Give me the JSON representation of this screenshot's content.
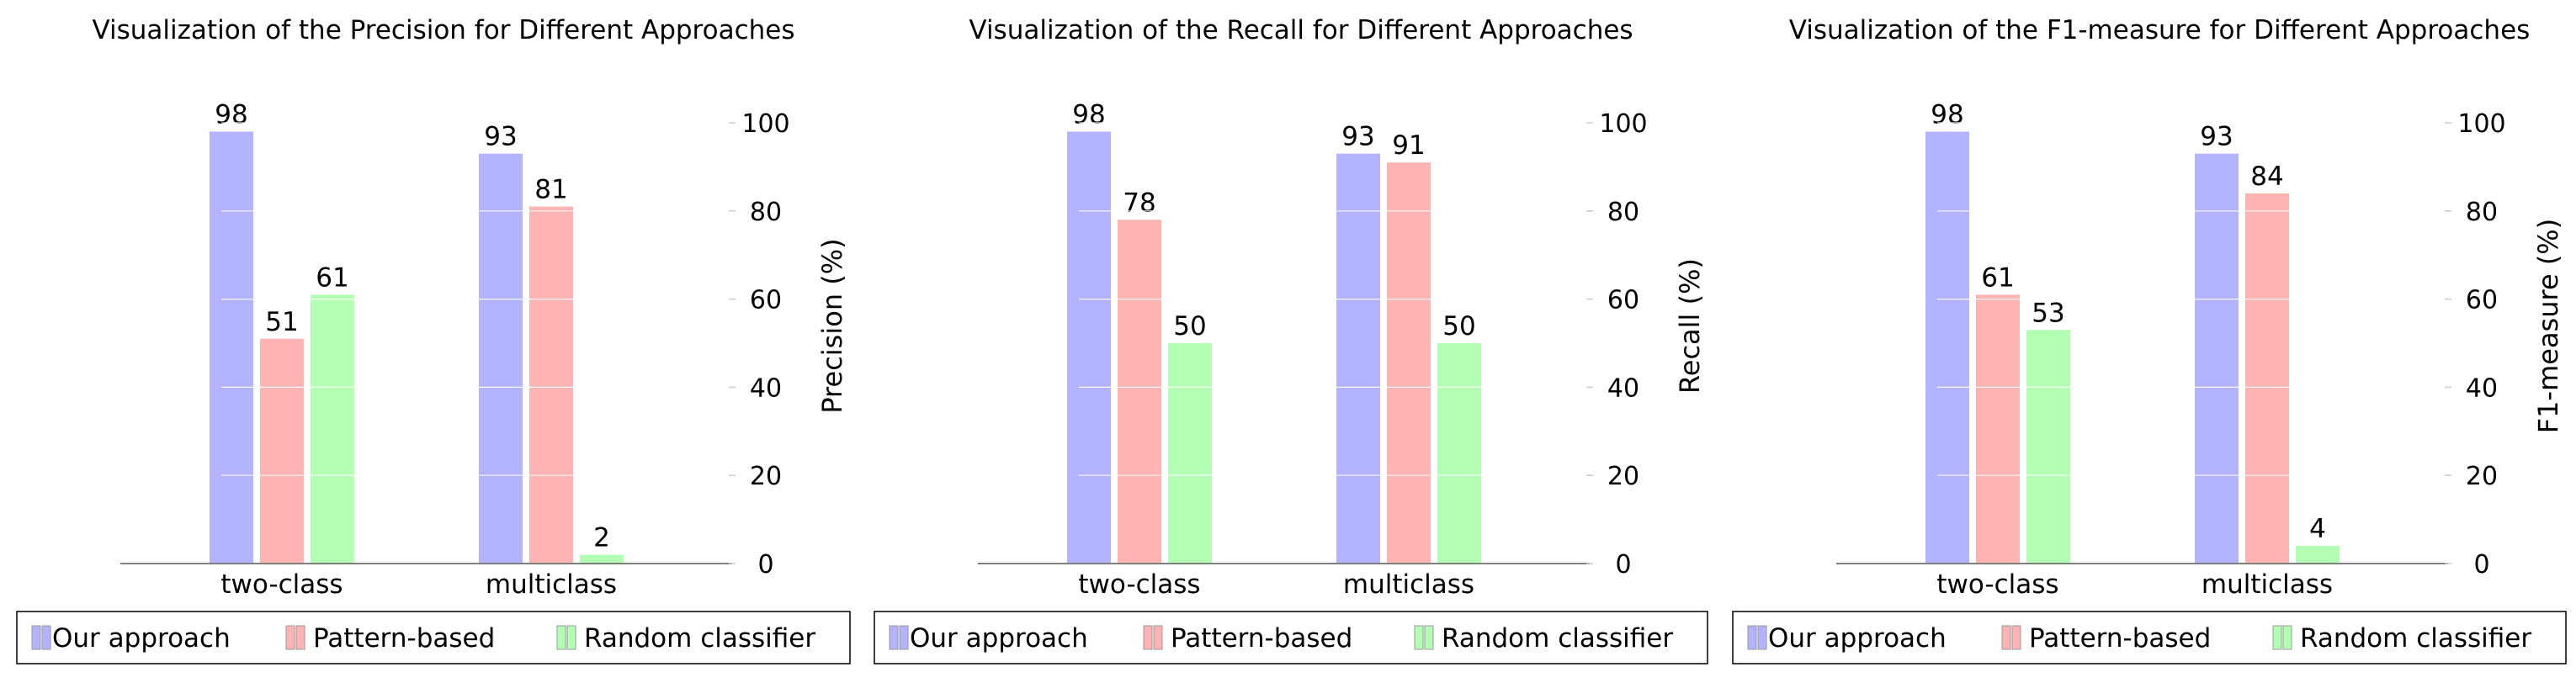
{
  "colors": {
    "our": "#b3b3ff",
    "pattern": "#ffb3b3",
    "random": "#b3ffb3",
    "axis": "#808080"
  },
  "chart_data": [
    {
      "type": "bar",
      "title": "Visualization of the Precision for Different Approaches",
      "ylabel": "Precision (%)",
      "xlabel": "",
      "categories": [
        "two-class",
        "multiclass"
      ],
      "ylim": [
        0,
        100
      ],
      "yticks": [
        0,
        20,
        40,
        60,
        80,
        100
      ],
      "grid": true,
      "legend_position": "bottom",
      "series": [
        {
          "name": "Our approach",
          "values": [
            98,
            93
          ]
        },
        {
          "name": "Pattern-based",
          "values": [
            51,
            81
          ]
        },
        {
          "name": "Random classifier",
          "values": [
            61,
            2
          ]
        }
      ]
    },
    {
      "type": "bar",
      "title": "Visualization of the Recall for Different Approaches",
      "ylabel": "Recall (%)",
      "xlabel": "",
      "categories": [
        "two-class",
        "multiclass"
      ],
      "ylim": [
        0,
        100
      ],
      "yticks": [
        0,
        20,
        40,
        60,
        80,
        100
      ],
      "grid": true,
      "legend_position": "bottom",
      "series": [
        {
          "name": "Our approach",
          "values": [
            98,
            93
          ]
        },
        {
          "name": "Pattern-based",
          "values": [
            78,
            91
          ]
        },
        {
          "name": "Random classifier",
          "values": [
            50,
            50
          ]
        }
      ]
    },
    {
      "type": "bar",
      "title": "Visualization of the F1-measure for Different Approaches",
      "ylabel": "F1-measure (%)",
      "xlabel": "",
      "categories": [
        "two-class",
        "multiclass"
      ],
      "ylim": [
        0,
        100
      ],
      "yticks": [
        0,
        20,
        40,
        60,
        80,
        100
      ],
      "grid": true,
      "legend_position": "bottom",
      "series": [
        {
          "name": "Our approach",
          "values": [
            98,
            93
          ]
        },
        {
          "name": "Pattern-based",
          "values": [
            61,
            84
          ]
        },
        {
          "name": "Random classifier",
          "values": [
            53,
            4
          ]
        }
      ]
    }
  ]
}
